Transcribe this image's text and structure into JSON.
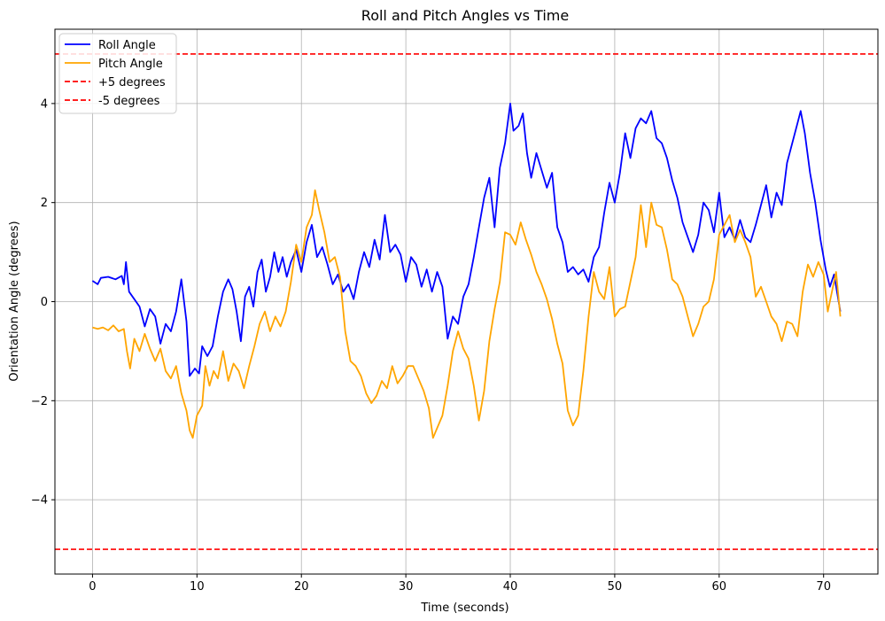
{
  "chart_data": {
    "type": "line",
    "title": "Roll and Pitch Angles vs Time",
    "xlabel": "Time (seconds)",
    "ylabel": "Orientation Angle (degrees)",
    "xlim": [
      -3.6,
      75.2
    ],
    "ylim": [
      -5.5,
      5.5
    ],
    "x_ticks": [
      0,
      10,
      20,
      30,
      40,
      50,
      60,
      70
    ],
    "x_tick_labels": [
      "0",
      "10",
      "20",
      "30",
      "40",
      "50",
      "60",
      "70"
    ],
    "y_ticks": [
      -4,
      -2,
      0,
      2,
      4
    ],
    "y_tick_labels": [
      "−4",
      "−2",
      "0",
      "2",
      "4"
    ],
    "grid": true,
    "legend_position": "upper-left",
    "series": [
      {
        "name": "Roll Angle",
        "color": "#0000ff",
        "style": "solid",
        "points": [
          [
            0,
            0.42
          ],
          [
            0.5,
            0.35
          ],
          [
            0.8,
            0.48
          ],
          [
            1.5,
            0.5
          ],
          [
            2.2,
            0.45
          ],
          [
            2.8,
            0.52
          ],
          [
            3.0,
            0.35
          ],
          [
            3.2,
            0.8
          ],
          [
            3.5,
            0.2
          ],
          [
            4.0,
            0.05
          ],
          [
            4.5,
            -0.1
          ],
          [
            5.0,
            -0.5
          ],
          [
            5.5,
            -0.15
          ],
          [
            6.0,
            -0.3
          ],
          [
            6.5,
            -0.85
          ],
          [
            7.0,
            -0.45
          ],
          [
            7.5,
            -0.6
          ],
          [
            8.0,
            -0.2
          ],
          [
            8.5,
            0.45
          ],
          [
            9.0,
            -0.4
          ],
          [
            9.3,
            -1.5
          ],
          [
            9.8,
            -1.35
          ],
          [
            10.2,
            -1.45
          ],
          [
            10.5,
            -0.9
          ],
          [
            11.0,
            -1.1
          ],
          [
            11.5,
            -0.9
          ],
          [
            12.0,
            -0.3
          ],
          [
            12.5,
            0.2
          ],
          [
            13.0,
            0.45
          ],
          [
            13.4,
            0.25
          ],
          [
            13.8,
            -0.2
          ],
          [
            14.2,
            -0.8
          ],
          [
            14.6,
            0.1
          ],
          [
            15.0,
            0.3
          ],
          [
            15.4,
            -0.1
          ],
          [
            15.8,
            0.6
          ],
          [
            16.2,
            0.85
          ],
          [
            16.6,
            0.2
          ],
          [
            17.0,
            0.5
          ],
          [
            17.4,
            1.0
          ],
          [
            17.8,
            0.6
          ],
          [
            18.2,
            0.9
          ],
          [
            18.6,
            0.5
          ],
          [
            19.0,
            0.8
          ],
          [
            19.5,
            1.05
          ],
          [
            20.0,
            0.6
          ],
          [
            20.5,
            1.2
          ],
          [
            21.0,
            1.55
          ],
          [
            21.5,
            0.9
          ],
          [
            22.0,
            1.1
          ],
          [
            22.5,
            0.75
          ],
          [
            23.0,
            0.35
          ],
          [
            23.5,
            0.55
          ],
          [
            24.0,
            0.2
          ],
          [
            24.5,
            0.35
          ],
          [
            25.0,
            0.05
          ],
          [
            25.5,
            0.6
          ],
          [
            26.0,
            1.0
          ],
          [
            26.5,
            0.7
          ],
          [
            27.0,
            1.25
          ],
          [
            27.5,
            0.85
          ],
          [
            28.0,
            1.75
          ],
          [
            28.5,
            1.0
          ],
          [
            29.0,
            1.15
          ],
          [
            29.5,
            0.95
          ],
          [
            30.0,
            0.4
          ],
          [
            30.5,
            0.9
          ],
          [
            31.0,
            0.75
          ],
          [
            31.5,
            0.3
          ],
          [
            32.0,
            0.65
          ],
          [
            32.5,
            0.2
          ],
          [
            33.0,
            0.6
          ],
          [
            33.5,
            0.3
          ],
          [
            34.0,
            -0.75
          ],
          [
            34.5,
            -0.3
          ],
          [
            35.0,
            -0.45
          ],
          [
            35.5,
            0.1
          ],
          [
            36.0,
            0.35
          ],
          [
            36.5,
            0.9
          ],
          [
            37.0,
            1.5
          ],
          [
            37.5,
            2.1
          ],
          [
            38.0,
            2.5
          ],
          [
            38.5,
            1.5
          ],
          [
            39.0,
            2.7
          ],
          [
            39.5,
            3.2
          ],
          [
            40.0,
            4.0
          ],
          [
            40.3,
            3.45
          ],
          [
            40.8,
            3.55
          ],
          [
            41.2,
            3.8
          ],
          [
            41.6,
            3.0
          ],
          [
            42.0,
            2.5
          ],
          [
            42.5,
            3.0
          ],
          [
            43.0,
            2.65
          ],
          [
            43.5,
            2.3
          ],
          [
            44.0,
            2.6
          ],
          [
            44.5,
            1.5
          ],
          [
            45.0,
            1.2
          ],
          [
            45.5,
            0.6
          ],
          [
            46.0,
            0.7
          ],
          [
            46.5,
            0.55
          ],
          [
            47.0,
            0.65
          ],
          [
            47.5,
            0.4
          ],
          [
            48.0,
            0.9
          ],
          [
            48.5,
            1.1
          ],
          [
            49.0,
            1.8
          ],
          [
            49.5,
            2.4
          ],
          [
            50.0,
            2.0
          ],
          [
            50.5,
            2.6
          ],
          [
            51.0,
            3.4
          ],
          [
            51.5,
            2.9
          ],
          [
            52.0,
            3.5
          ],
          [
            52.5,
            3.7
          ],
          [
            53.0,
            3.6
          ],
          [
            53.5,
            3.85
          ],
          [
            54.0,
            3.3
          ],
          [
            54.5,
            3.2
          ],
          [
            55.0,
            2.9
          ],
          [
            55.5,
            2.45
          ],
          [
            56.0,
            2.1
          ],
          [
            56.5,
            1.6
          ],
          [
            57.0,
            1.3
          ],
          [
            57.5,
            1.0
          ],
          [
            58.0,
            1.35
          ],
          [
            58.5,
            2.0
          ],
          [
            59.0,
            1.85
          ],
          [
            59.5,
            1.4
          ],
          [
            60.0,
            2.2
          ],
          [
            60.5,
            1.3
          ],
          [
            61.0,
            1.5
          ],
          [
            61.5,
            1.25
          ],
          [
            62.0,
            1.65
          ],
          [
            62.5,
            1.3
          ],
          [
            63.0,
            1.2
          ],
          [
            63.5,
            1.55
          ],
          [
            64.0,
            1.95
          ],
          [
            64.5,
            2.35
          ],
          [
            65.0,
            1.7
          ],
          [
            65.5,
            2.2
          ],
          [
            66.0,
            1.95
          ],
          [
            66.5,
            2.8
          ],
          [
            67.0,
            3.2
          ],
          [
            67.5,
            3.6
          ],
          [
            67.8,
            3.85
          ],
          [
            68.2,
            3.4
          ],
          [
            68.7,
            2.6
          ],
          [
            69.2,
            2.0
          ],
          [
            69.7,
            1.25
          ],
          [
            70.2,
            0.65
          ],
          [
            70.6,
            0.3
          ],
          [
            71.0,
            0.55
          ],
          [
            71.6,
            -0.2
          ]
        ]
      },
      {
        "name": "Pitch Angle",
        "color": "#ffa500",
        "style": "solid",
        "points": [
          [
            0,
            -0.52
          ],
          [
            0.5,
            -0.55
          ],
          [
            1.0,
            -0.52
          ],
          [
            1.5,
            -0.58
          ],
          [
            2.0,
            -0.48
          ],
          [
            2.5,
            -0.6
          ],
          [
            3.0,
            -0.55
          ],
          [
            3.3,
            -1.0
          ],
          [
            3.6,
            -1.35
          ],
          [
            4.0,
            -0.75
          ],
          [
            4.5,
            -1.0
          ],
          [
            5.0,
            -0.65
          ],
          [
            5.5,
            -0.95
          ],
          [
            6.0,
            -1.2
          ],
          [
            6.5,
            -0.95
          ],
          [
            7.0,
            -1.4
          ],
          [
            7.5,
            -1.55
          ],
          [
            8.0,
            -1.3
          ],
          [
            8.5,
            -1.85
          ],
          [
            9.0,
            -2.2
          ],
          [
            9.3,
            -2.6
          ],
          [
            9.6,
            -2.75
          ],
          [
            10.0,
            -2.3
          ],
          [
            10.5,
            -2.1
          ],
          [
            10.8,
            -1.3
          ],
          [
            11.2,
            -1.7
          ],
          [
            11.6,
            -1.4
          ],
          [
            12.0,
            -1.55
          ],
          [
            12.5,
            -1.0
          ],
          [
            13.0,
            -1.6
          ],
          [
            13.5,
            -1.25
          ],
          [
            14.0,
            -1.4
          ],
          [
            14.5,
            -1.75
          ],
          [
            15.0,
            -1.3
          ],
          [
            15.5,
            -0.9
          ],
          [
            16.0,
            -0.45
          ],
          [
            16.5,
            -0.2
          ],
          [
            17.0,
            -0.6
          ],
          [
            17.5,
            -0.3
          ],
          [
            18.0,
            -0.5
          ],
          [
            18.5,
            -0.2
          ],
          [
            19.0,
            0.4
          ],
          [
            19.5,
            1.15
          ],
          [
            20.0,
            0.8
          ],
          [
            20.5,
            1.5
          ],
          [
            21.0,
            1.75
          ],
          [
            21.3,
            2.25
          ],
          [
            21.7,
            1.85
          ],
          [
            22.2,
            1.4
          ],
          [
            22.7,
            0.8
          ],
          [
            23.2,
            0.9
          ],
          [
            23.7,
            0.5
          ],
          [
            24.2,
            -0.6
          ],
          [
            24.7,
            -1.2
          ],
          [
            25.2,
            -1.3
          ],
          [
            25.7,
            -1.5
          ],
          [
            26.2,
            -1.85
          ],
          [
            26.7,
            -2.05
          ],
          [
            27.2,
            -1.9
          ],
          [
            27.7,
            -1.6
          ],
          [
            28.2,
            -1.75
          ],
          [
            28.7,
            -1.3
          ],
          [
            29.2,
            -1.65
          ],
          [
            29.7,
            -1.5
          ],
          [
            30.2,
            -1.3
          ],
          [
            30.7,
            -1.3
          ],
          [
            31.2,
            -1.55
          ],
          [
            31.7,
            -1.8
          ],
          [
            32.2,
            -2.15
          ],
          [
            32.6,
            -2.75
          ],
          [
            33.0,
            -2.55
          ],
          [
            33.5,
            -2.3
          ],
          [
            34.0,
            -1.7
          ],
          [
            34.5,
            -1.0
          ],
          [
            35.0,
            -0.6
          ],
          [
            35.5,
            -0.95
          ],
          [
            36.0,
            -1.15
          ],
          [
            36.5,
            -1.7
          ],
          [
            37.0,
            -2.4
          ],
          [
            37.5,
            -1.8
          ],
          [
            38.0,
            -0.8
          ],
          [
            38.5,
            -0.15
          ],
          [
            39.0,
            0.4
          ],
          [
            39.5,
            1.4
          ],
          [
            40.0,
            1.35
          ],
          [
            40.5,
            1.15
          ],
          [
            41.0,
            1.6
          ],
          [
            41.5,
            1.25
          ],
          [
            42.0,
            0.95
          ],
          [
            42.5,
            0.6
          ],
          [
            43.0,
            0.35
          ],
          [
            43.5,
            0.05
          ],
          [
            44.0,
            -0.35
          ],
          [
            44.5,
            -0.85
          ],
          [
            45.0,
            -1.25
          ],
          [
            45.5,
            -2.2
          ],
          [
            46.0,
            -2.5
          ],
          [
            46.5,
            -2.3
          ],
          [
            47.0,
            -1.4
          ],
          [
            47.5,
            -0.3
          ],
          [
            48.0,
            0.6
          ],
          [
            48.5,
            0.2
          ],
          [
            49.0,
            0.05
          ],
          [
            49.5,
            0.7
          ],
          [
            50.0,
            -0.3
          ],
          [
            50.5,
            -0.15
          ],
          [
            51.0,
            -0.1
          ],
          [
            51.5,
            0.4
          ],
          [
            52.0,
            0.9
          ],
          [
            52.5,
            1.95
          ],
          [
            53.0,
            1.1
          ],
          [
            53.5,
            2.0
          ],
          [
            54.0,
            1.55
          ],
          [
            54.5,
            1.5
          ],
          [
            55.0,
            1.05
          ],
          [
            55.5,
            0.45
          ],
          [
            56.0,
            0.35
          ],
          [
            56.5,
            0.1
          ],
          [
            57.0,
            -0.3
          ],
          [
            57.5,
            -0.7
          ],
          [
            58.0,
            -0.45
          ],
          [
            58.5,
            -0.1
          ],
          [
            59.0,
            0.0
          ],
          [
            59.5,
            0.45
          ],
          [
            60.0,
            1.35
          ],
          [
            60.5,
            1.55
          ],
          [
            61.0,
            1.75
          ],
          [
            61.5,
            1.2
          ],
          [
            62.0,
            1.45
          ],
          [
            62.5,
            1.2
          ],
          [
            63.0,
            0.9
          ],
          [
            63.5,
            0.1
          ],
          [
            64.0,
            0.3
          ],
          [
            64.5,
            0.0
          ],
          [
            65.0,
            -0.3
          ],
          [
            65.5,
            -0.45
          ],
          [
            66.0,
            -0.8
          ],
          [
            66.5,
            -0.4
          ],
          [
            67.0,
            -0.45
          ],
          [
            67.5,
            -0.7
          ],
          [
            68.0,
            0.2
          ],
          [
            68.5,
            0.75
          ],
          [
            69.0,
            0.5
          ],
          [
            69.5,
            0.8
          ],
          [
            70.0,
            0.55
          ],
          [
            70.4,
            -0.2
          ],
          [
            70.8,
            0.2
          ],
          [
            71.2,
            0.6
          ],
          [
            71.6,
            -0.3
          ]
        ]
      }
    ],
    "reference_lines": [
      {
        "name": "+5 degrees",
        "y": 5,
        "color": "#ff0000",
        "style": "dashed"
      },
      {
        "name": "-5 degrees",
        "y": -5,
        "color": "#ff0000",
        "style": "dashed"
      }
    ]
  }
}
